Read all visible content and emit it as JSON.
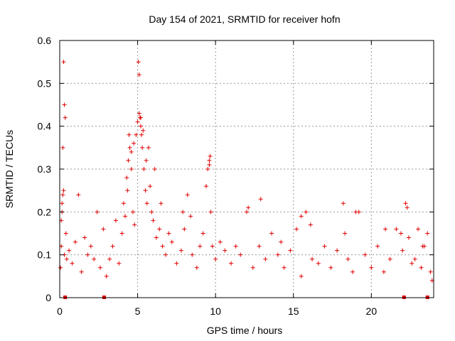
{
  "chart_data": {
    "type": "scatter",
    "title": "Day 154 of 2021, SRMTID for receiver hofn",
    "xlabel": "GPS time / hours",
    "ylabel": "SRMTID / TECUs",
    "xlim": [
      0,
      24
    ],
    "ylim": [
      0,
      0.6
    ],
    "x_ticks": [
      0,
      5,
      10,
      15,
      20
    ],
    "y_ticks": [
      0,
      0.1,
      0.2,
      0.3,
      0.4,
      0.5,
      0.6
    ],
    "x_tick_labels": [
      "0",
      "5",
      "10",
      "15",
      "20"
    ],
    "y_tick_labels": [
      "0",
      "0.1",
      "0.2",
      "0.3",
      "0.4",
      "0.5",
      "0.6"
    ],
    "grid": true,
    "marker": "+",
    "color": "#e00000",
    "gap_markers_x": [
      0.35,
      2.85,
      22.1,
      23.6
    ],
    "series": [
      {
        "name": "SRMTID",
        "x": [
          0.05,
          0.1,
          0.15,
          0.2,
          0.25,
          0.3,
          0.35,
          0.4,
          0.1,
          0.2,
          0.3,
          0.45,
          0.6,
          0.8,
          1.0,
          1.2,
          1.4,
          1.6,
          1.8,
          2.0,
          2.2,
          2.4,
          2.6,
          2.8,
          3.0,
          3.2,
          3.4,
          3.6,
          3.8,
          4.0,
          4.1,
          4.2,
          4.3,
          4.4,
          4.5,
          4.6,
          4.7,
          4.8,
          4.9,
          5.0,
          5.05,
          5.1,
          5.15,
          5.2,
          5.25,
          5.3,
          5.4,
          5.5,
          5.6,
          5.7,
          5.8,
          5.9,
          6.0,
          6.2,
          6.4,
          6.6,
          6.8,
          7.0,
          7.2,
          7.5,
          7.8,
          8.0,
          8.2,
          8.5,
          8.8,
          9.0,
          9.2,
          9.4,
          9.5,
          9.6,
          9.7,
          9.8,
          10.0,
          10.3,
          10.6,
          11.0,
          11.3,
          11.6,
          12.0,
          12.4,
          12.8,
          12.9,
          13.2,
          13.6,
          14.0,
          14.4,
          14.8,
          15.2,
          15.5,
          15.8,
          16.2,
          16.6,
          17.0,
          17.4,
          17.8,
          18.2,
          18.5,
          18.8,
          19.2,
          19.6,
          20.0,
          20.4,
          20.8,
          21.2,
          21.6,
          22.0,
          22.2,
          22.4,
          22.6,
          22.8,
          23.0,
          23.2,
          23.4,
          23.6,
          23.8,
          23.9,
          0.15,
          0.25,
          4.35,
          4.45,
          4.6,
          4.75,
          5.1,
          5.2,
          5.35,
          5.55,
          6.1,
          6.5,
          7.9,
          8.4,
          9.6,
          9.65,
          12.1,
          14.2,
          15.5,
          16.1,
          18.3,
          19.0,
          20.9,
          21.9,
          22.3,
          23.3
        ],
        "y": [
          0.07,
          0.18,
          0.2,
          0.35,
          0.55,
          0.45,
          0.42,
          0.15,
          0.12,
          0.24,
          0.1,
          0.09,
          0.11,
          0.08,
          0.13,
          0.24,
          0.06,
          0.14,
          0.1,
          0.12,
          0.09,
          0.2,
          0.07,
          0.16,
          0.05,
          0.09,
          0.12,
          0.18,
          0.08,
          0.15,
          0.22,
          0.19,
          0.28,
          0.32,
          0.35,
          0.3,
          0.2,
          0.17,
          0.38,
          0.41,
          0.55,
          0.52,
          0.42,
          0.4,
          0.38,
          0.35,
          0.3,
          0.25,
          0.22,
          0.35,
          0.26,
          0.2,
          0.18,
          0.14,
          0.16,
          0.12,
          0.1,
          0.15,
          0.13,
          0.08,
          0.11,
          0.16,
          0.24,
          0.1,
          0.07,
          0.12,
          0.15,
          0.26,
          0.3,
          0.32,
          0.2,
          0.12,
          0.09,
          0.13,
          0.11,
          0.08,
          0.12,
          0.1,
          0.2,
          0.07,
          0.12,
          0.23,
          0.09,
          0.15,
          0.1,
          0.07,
          0.11,
          0.16,
          0.05,
          0.2,
          0.09,
          0.08,
          0.12,
          0.07,
          0.11,
          0.22,
          0.09,
          0.06,
          0.2,
          0.1,
          0.07,
          0.12,
          0.06,
          0.09,
          0.16,
          0.11,
          0.22,
          0.14,
          0.08,
          0.09,
          0.16,
          0.07,
          0.12,
          0.15,
          0.06,
          0.04,
          0.22,
          0.25,
          0.25,
          0.38,
          0.34,
          0.36,
          0.43,
          0.42,
          0.39,
          0.32,
          0.3,
          0.22,
          0.2,
          0.19,
          0.31,
          0.33,
          0.21,
          0.13,
          0.19,
          0.17,
          0.15,
          0.2,
          0.16,
          0.15,
          0.21,
          0.12
        ]
      }
    ]
  }
}
